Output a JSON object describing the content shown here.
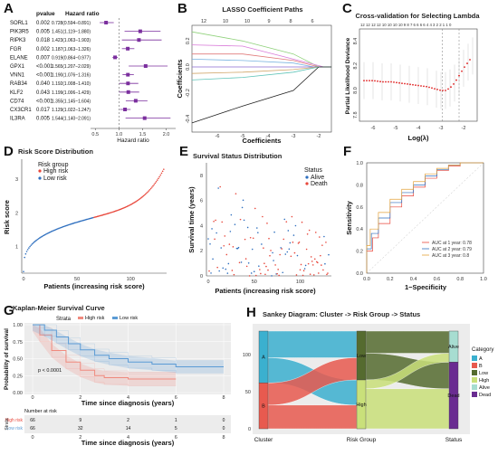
{
  "panels": {
    "A": {
      "label": "A",
      "header_pvalue": "pvalue",
      "header_hr": "Hazard ratio",
      "xlabel": "Hazard ratio",
      "x_ticks": [
        "0.5",
        "1.0",
        "1.5",
        "2.0"
      ],
      "point_color": "#7b2f9e"
    },
    "B": {
      "label": "B",
      "title": "LASSO Coefficient Paths",
      "xlabel": "Coefficients",
      "ylabel": "Coefficients",
      "top_ticks": [
        "12",
        "10",
        "10",
        "9",
        "8",
        "6"
      ],
      "x_ticks": [
        "-6",
        "-5",
        "-4",
        "-3",
        "-2"
      ],
      "y_ticks": [
        "-0.4",
        "-0.2",
        "0.0",
        "0.2"
      ]
    },
    "C": {
      "label": "C",
      "title": "Cross-validation for Selecting Lambda",
      "xlabel": "Log(λ)",
      "ylabel": "Partial Likelihood Deviance",
      "top_ticks": "12 12 12 12 10 10 10 10 9 8 7 6 6 6 6 4 4 3 2 2 1 1 0",
      "x_ticks": [
        "-6",
        "-5",
        "-4",
        "-3",
        "-2"
      ],
      "y_ticks": [
        "7.8",
        "8.0",
        "8.2",
        "8.4"
      ]
    },
    "D": {
      "label": "D",
      "title": "Risk Score Distribution",
      "xlabel": "Patients (increasing risk score)",
      "ylabel": "Risk score",
      "legend_title": "Risk group",
      "legend": [
        "High risk",
        "Low risk"
      ],
      "x_ticks": [
        "0",
        "50",
        "100"
      ],
      "y_ticks": [
        "1",
        "2",
        "3"
      ],
      "colors": {
        "high": "#e8473b",
        "low": "#2e6fbf"
      }
    },
    "E": {
      "label": "E",
      "title": "Survival Status Distribution",
      "xlabel": "Patients (increasing risk score)",
      "ylabel": "Survival time (years)",
      "legend_title": "Status",
      "legend": [
        "Alive",
        "Death"
      ],
      "x_ticks": [
        "0",
        "50",
        "100"
      ],
      "y_ticks": [
        "0",
        "2",
        "4",
        "6",
        "8"
      ]
    },
    "F": {
      "label": "F",
      "xlabel": "1−Specificity",
      "ylabel": "Sensitivity",
      "legend": [
        "AUC at 1 year: 0.78",
        "AUC at 2 year: 0.79",
        "AUC at 3 year: 0.8"
      ],
      "x_ticks": [
        "0.0",
        "0.2",
        "0.4",
        "0.6",
        "0.8",
        "1.0"
      ],
      "y_ticks": [
        "0.0",
        "0.2",
        "0.4",
        "0.6",
        "0.8",
        "1.0"
      ],
      "colors": [
        "#e8473b",
        "#2e6fbf",
        "#e3a23a"
      ]
    },
    "G": {
      "label": "G",
      "title": "Kaplan-Meier Survival Curve",
      "strata_label": "Strata",
      "legend": [
        "High risk",
        "Low risk"
      ],
      "ylabel": "Probability of survival",
      "xlabel": "Time since diagnosis (years)",
      "pvalue": "p < 0.0001",
      "x_ticks": [
        "0",
        "2",
        "4",
        "6",
        "8"
      ],
      "y_ticks": [
        "0.00",
        "0.25",
        "0.50",
        "0.75",
        "1.00"
      ],
      "risk_title": "Number at risk",
      "risk_rows": [
        {
          "label": "High risk",
          "values": [
            "66",
            "9",
            "2",
            "1",
            "0"
          ]
        },
        {
          "label": "Low risk",
          "values": [
            "66",
            "32",
            "14",
            "5",
            "0"
          ]
        }
      ],
      "risk_xlabel": "Time since diagnosis (years)",
      "strata_axis": "Strata",
      "colors": {
        "high": "#f08a7e",
        "low": "#5b9bd5"
      }
    },
    "H": {
      "label": "H",
      "title": "Sankey Diagram: Cluster -> Risk Group -> Status",
      "x_labels": [
        "Cluster",
        "Risk Group",
        "Status"
      ],
      "y_ticks": [
        "0",
        "50",
        "100"
      ],
      "node_labels": [
        "A",
        "B",
        "Low",
        "High",
        "Alive",
        "Dead"
      ],
      "legend_title": "Category",
      "legend": [
        "A",
        "B",
        "Low",
        "High",
        "Alive",
        "Dead"
      ],
      "colors": [
        "#3bb0cf",
        "#e85a4f",
        "#556b2f",
        "#c9e07a",
        "#a7ddd1",
        "#6a2c91"
      ]
    }
  },
  "chart_data": [
    {
      "type": "forest",
      "panel": "A",
      "genes": [
        "SORL1",
        "PIK3R5",
        "RIPK3",
        "FGR",
        "ELANE",
        "GPX1",
        "VNN1",
        "RAB34",
        "KLF2",
        "CD74",
        "CX3CR1",
        "IL3RA"
      ],
      "pvalues": [
        "0.002",
        "0.005",
        "0.018",
        "0.002",
        "0.007",
        "<0.001",
        "<0.001",
        "0.040",
        "0.043",
        "<0.001",
        "0.017",
        "0.005"
      ],
      "hr_text": [
        "0.728(0.594−0.891)",
        "1.451(1.119−1.880)",
        "1.423(1.063−1.903)",
        "1.187(1.063−1.326)",
        "0.919(0.864−0.977)",
        "1.565(1.207−2.029)",
        "1.190(1.076−1.316)",
        "1.192(1.008−1.410)",
        "1.199(1.006−1.429)",
        "1.355(1.145−1.604)",
        "1.129(1.022−1.247)",
        "1.544(1.140−2.091)"
      ],
      "hr": [
        0.728,
        1.451,
        1.423,
        1.187,
        0.919,
        1.565,
        1.19,
        1.192,
        1.199,
        1.355,
        1.129,
        1.544
      ],
      "lower": [
        0.594,
        1.119,
        1.063,
        1.063,
        0.864,
        1.207,
        1.076,
        1.008,
        1.006,
        1.145,
        1.022,
        1.14
      ],
      "upper": [
        0.891,
        1.88,
        1.903,
        1.326,
        0.977,
        2.029,
        1.316,
        1.41,
        1.429,
        1.604,
        1.247,
        2.091
      ],
      "xlim": [
        0.4,
        2.2
      ],
      "reference_line": 1.0
    },
    {
      "type": "line",
      "panel": "B",
      "xlim": [
        -7,
        -1.5
      ],
      "ylim": [
        -0.5,
        0.32
      ],
      "series": [
        {
          "values": [
            [
              -7,
              0.27
            ],
            [
              -5,
              0.2
            ],
            [
              -3,
              0.1
            ],
            [
              -2,
              0.0
            ]
          ],
          "color": "#8fd17a"
        },
        {
          "values": [
            [
              -7,
              0.17
            ],
            [
              -5,
              0.16
            ],
            [
              -3,
              0.06
            ],
            [
              -1.8,
              0.0
            ]
          ],
          "color": "#d97bd9"
        },
        {
          "values": [
            [
              -7,
              0.1
            ],
            [
              -5,
              0.1
            ],
            [
              -3,
              0.05
            ],
            [
              -2,
              0.0
            ]
          ],
          "color": "#e07a7a"
        },
        {
          "values": [
            [
              -7,
              0.06
            ],
            [
              -5,
              0.05
            ],
            [
              -3,
              0.03
            ],
            [
              -2.2,
              0.0
            ]
          ],
          "color": "#7ab3e0"
        },
        {
          "values": [
            [
              -7,
              0.0
            ],
            [
              -5,
              0.0
            ],
            [
              -3,
              0.0
            ],
            [
              -2,
              0.0
            ]
          ],
          "color": "#8a6ad1"
        },
        {
          "values": [
            [
              -7,
              -0.05
            ],
            [
              -5,
              -0.04
            ],
            [
              -3,
              -0.02
            ],
            [
              -2,
              0.0
            ]
          ],
          "color": "#d1a66a"
        },
        {
          "values": [
            [
              -7,
              -0.1
            ],
            [
              -5,
              -0.08
            ],
            [
              -3,
              -0.04
            ],
            [
              -2,
              0.0
            ]
          ],
          "color": "#5fc4b8"
        },
        {
          "values": [
            [
              -7,
              -0.43
            ],
            [
              -5,
              -0.3
            ],
            [
              -3,
              -0.18
            ],
            [
              -2,
              0.0
            ]
          ],
          "color": "#222222"
        }
      ]
    },
    {
      "type": "line",
      "panel": "C",
      "xlim": [
        -6.6,
        -1.4
      ],
      "ylim": [
        7.75,
        8.5
      ],
      "x": [
        -6.4,
        -6.0,
        -5.6,
        -5.2,
        -4.8,
        -4.4,
        -4.0,
        -3.6,
        -3.2,
        -3.0,
        -2.8,
        -2.6,
        -2.4,
        -2.2,
        -2.0,
        -1.8,
        -1.6
      ],
      "y": [
        8.08,
        8.08,
        8.07,
        8.07,
        8.06,
        8.05,
        8.04,
        8.03,
        8.01,
        8.0,
        8.0,
        8.02,
        8.06,
        8.12,
        8.18,
        8.23,
        8.28
      ],
      "err": 0.15,
      "vlines": [
        -2.95,
        -2.2
      ]
    },
    {
      "type": "scatter",
      "panel": "D",
      "n": 132,
      "split_index": 66,
      "ylim": [
        0.2,
        3.6
      ]
    },
    {
      "type": "scatter",
      "panel": "E",
      "n": 132,
      "ylim": [
        0,
        9
      ]
    },
    {
      "type": "line",
      "panel": "F",
      "xlim": [
        0,
        1
      ],
      "ylim": [
        0,
        1
      ],
      "series": [
        {
          "name": "AUC at 1 year: 0.78",
          "values": [
            [
              0,
              0
            ],
            [
              0.05,
              0.2
            ],
            [
              0.1,
              0.32
            ],
            [
              0.2,
              0.45
            ],
            [
              0.3,
              0.6
            ],
            [
              0.4,
              0.7
            ],
            [
              0.5,
              0.78
            ],
            [
              0.6,
              0.86
            ],
            [
              0.7,
              0.93
            ],
            [
              0.8,
              0.97
            ],
            [
              1,
              1
            ]
          ]
        },
        {
          "name": "AUC at 2 year: 0.79",
          "values": [
            [
              0,
              0
            ],
            [
              0.04,
              0.22
            ],
            [
              0.1,
              0.36
            ],
            [
              0.2,
              0.5
            ],
            [
              0.3,
              0.64
            ],
            [
              0.4,
              0.73
            ],
            [
              0.5,
              0.8
            ],
            [
              0.6,
              0.88
            ],
            [
              0.7,
              0.94
            ],
            [
              0.8,
              0.98
            ],
            [
              1,
              1
            ]
          ]
        },
        {
          "name": "AUC at 3 year: 0.8",
          "values": [
            [
              0,
              0
            ],
            [
              0.03,
              0.25
            ],
            [
              0.1,
              0.4
            ],
            [
              0.2,
              0.55
            ],
            [
              0.3,
              0.67
            ],
            [
              0.4,
              0.76
            ],
            [
              0.5,
              0.83
            ],
            [
              0.6,
              0.9
            ],
            [
              0.7,
              0.95
            ],
            [
              0.8,
              0.98
            ],
            [
              1,
              1
            ]
          ]
        }
      ]
    },
    {
      "type": "line",
      "panel": "G",
      "xlim": [
        0,
        8
      ],
      "ylim": [
        0,
        1
      ],
      "series": [
        {
          "name": "High risk",
          "values": [
            [
              0,
              1
            ],
            [
              0.3,
              0.85
            ],
            [
              0.8,
              0.62
            ],
            [
              1.4,
              0.45
            ],
            [
              2,
              0.33
            ],
            [
              2.6,
              0.25
            ],
            [
              3,
              0.22
            ],
            [
              4,
              0.2
            ],
            [
              6,
              0.2
            ]
          ],
          "ci": 0.1
        },
        {
          "name": "Low risk",
          "values": [
            [
              0,
              1
            ],
            [
              0.5,
              0.92
            ],
            [
              1,
              0.82
            ],
            [
              1.5,
              0.72
            ],
            [
              2,
              0.63
            ],
            [
              2.6,
              0.55
            ],
            [
              3.2,
              0.5
            ],
            [
              4,
              0.45
            ],
            [
              5,
              0.42
            ],
            [
              6,
              0.38
            ],
            [
              8,
              0.38
            ]
          ],
          "ci": 0.09
        }
      ]
    },
    {
      "type": "sankey",
      "panel": "H",
      "axes": [
        "Cluster",
        "Risk Group",
        "Status"
      ],
      "nodes": {
        "Cluster": {
          "A": 70,
          "B": 62
        },
        "Risk Group": {
          "Low": 66,
          "High": 66
        },
        "Status": {
          "Alive": 42,
          "Dead": 90
        }
      },
      "flows": [
        {
          "from": "A",
          "to": "Low",
          "value": 36
        },
        {
          "from": "A",
          "to": "High",
          "value": 34
        },
        {
          "from": "B",
          "to": "Low",
          "value": 30
        },
        {
          "from": "B",
          "to": "High",
          "value": 32
        },
        {
          "from": "Low",
          "to": "Alive",
          "value": 30
        },
        {
          "from": "Low",
          "to": "Dead",
          "value": 36
        },
        {
          "from": "High",
          "to": "Alive",
          "value": 12
        },
        {
          "from": "High",
          "to": "Dead",
          "value": 54
        }
      ]
    }
  ]
}
